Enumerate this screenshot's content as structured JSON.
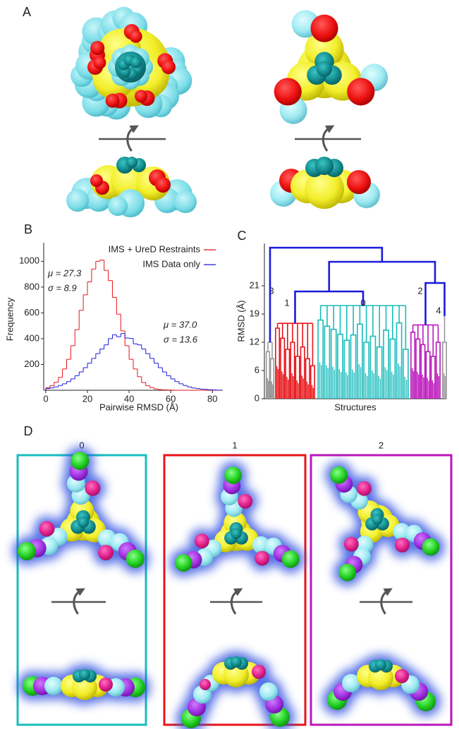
{
  "figure": {
    "panel_labels": [
      "A",
      "B",
      "C",
      "D"
    ],
    "panel_d_titles": [
      "0",
      "1",
      "2"
    ],
    "panel_d_colors": [
      "#19bcbc",
      "#e8141a",
      "#bb16bb"
    ]
  },
  "chart_data": [
    {
      "type": "histogram",
      "bins": [
        0,
        2,
        4,
        6,
        8,
        10,
        12,
        14,
        16,
        18,
        20,
        22,
        24,
        26,
        28,
        30,
        32,
        34,
        36,
        38,
        40,
        42,
        44,
        46,
        48,
        50,
        52,
        54,
        56,
        58,
        60,
        62,
        64,
        66,
        68,
        70,
        72,
        74,
        76,
        78,
        80,
        82,
        84
      ],
      "series": [
        {
          "name": "IMS + UreD Restraints",
          "color": "#e8141a",
          "values": [
            19,
            35,
            62,
            100,
            165,
            240,
            345,
            470,
            620,
            740,
            840,
            940,
            1000,
            1010,
            930,
            850,
            720,
            590,
            460,
            345,
            240,
            165,
            105,
            60,
            35,
            20,
            10,
            5,
            3,
            2,
            1,
            0,
            0,
            0,
            0,
            0,
            0,
            0,
            0,
            0,
            0,
            0
          ]
        },
        {
          "name": "IMS Data only",
          "color": "#1a1adc",
          "values": [
            13,
            18,
            26,
            37,
            50,
            67,
            88,
            113,
            142,
            175,
            210,
            247,
            284,
            320,
            352,
            400,
            430,
            415,
            440,
            405,
            402,
            360,
            352,
            320,
            284,
            247,
            210,
            175,
            142,
            113,
            88,
            67,
            50,
            37,
            26,
            18,
            13,
            9,
            6,
            4,
            2,
            1
          ]
        }
      ],
      "xlim": [
        -1,
        85
      ],
      "ylim": [
        0,
        1100
      ],
      "xticks": [
        0,
        20,
        40,
        60,
        80
      ],
      "yticks": [
        200,
        400,
        600,
        800,
        1000
      ],
      "x_label": "Pairwise RMSD (Å)",
      "y_label": "Frequency",
      "annotations": [
        {
          "lines": [
            "μ = 27.3",
            "σ = 8.9"
          ],
          "color": "#e8141a"
        },
        {
          "lines": [
            "μ = 37.0",
            "σ = 13.6"
          ],
          "color": "#1a1adc"
        }
      ]
    },
    {
      "type": "dendrogram",
      "ylim": [
        0,
        24
      ],
      "yticks": [
        0,
        6,
        12,
        19,
        21
      ],
      "y_label": "RMSD (Å)",
      "x_label": "Structures",
      "link_color": "#1a1adc",
      "clusters": [
        {
          "name": "3",
          "color": "#999999",
          "height": 12,
          "branch_heights": [
            10,
            8.5
          ]
        },
        {
          "name": "1",
          "color": "#e8141a",
          "height": 16.7,
          "branch_heights": [
            15.5,
            13,
            10.5,
            12,
            9,
            11,
            8.5,
            7
          ]
        },
        {
          "name": "0",
          "color": "#19bcbc",
          "height": 19.6,
          "branch_heights": [
            17.5,
            16,
            15.2,
            14,
            12.5,
            13.8,
            16.5,
            12,
            13.5,
            11,
            15,
            12.8,
            16.8,
            10.5
          ]
        },
        {
          "name": "2",
          "color": "#bb16bb",
          "height": 16.3,
          "branch_heights": [
            14.5,
            12.8,
            11.5,
            10,
            9,
            12
          ]
        },
        {
          "name": "4",
          "color": "#999999",
          "height": 18.5,
          "branch_heights": [
            12
          ]
        }
      ],
      "merge_heights": [
        20.6,
        21.2,
        22.7,
        23.7
      ]
    }
  ]
}
